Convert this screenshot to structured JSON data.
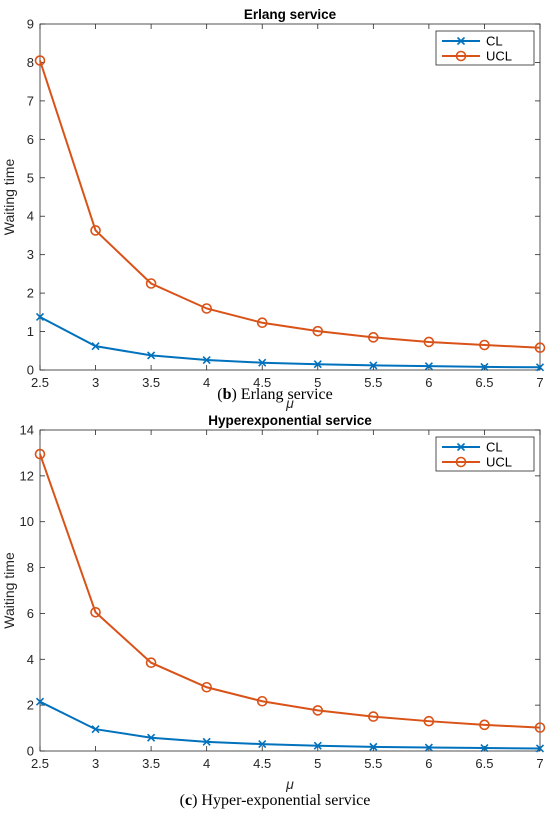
{
  "chart_data": [
    {
      "type": "line",
      "title": "Erlang service",
      "xlabel": "μ",
      "ylabel": "Waiting time",
      "xlim": [
        2.5,
        7
      ],
      "ylim": [
        0,
        9
      ],
      "xticks": [
        "2.5",
        "3",
        "3.5",
        "4",
        "4.5",
        "5",
        "5.5",
        "6",
        "6.5",
        "7"
      ],
      "yticks": [
        "0",
        "1",
        "2",
        "3",
        "4",
        "5",
        "6",
        "7",
        "8",
        "9"
      ],
      "x": [
        2.5,
        3,
        3.5,
        4,
        4.5,
        5,
        5.5,
        6,
        6.5,
        7
      ],
      "series": [
        {
          "name": "CL",
          "color": "#0072BD",
          "marker": "x",
          "values": [
            1.38,
            0.62,
            0.38,
            0.26,
            0.19,
            0.15,
            0.12,
            0.1,
            0.08,
            0.07
          ]
        },
        {
          "name": "UCL",
          "color": "#D95319",
          "marker": "o",
          "values": [
            8.05,
            3.63,
            2.25,
            1.6,
            1.23,
            1.01,
            0.85,
            0.73,
            0.65,
            0.58
          ]
        }
      ],
      "legend_position": "top-right",
      "caption_label": "b",
      "caption_text": "Erlang service"
    },
    {
      "type": "line",
      "title": "Hyperexponential service",
      "xlabel": "μ",
      "ylabel": "Waiting time",
      "xlim": [
        2.5,
        7
      ],
      "ylim": [
        0,
        14
      ],
      "xticks": [
        "2.5",
        "3",
        "3.5",
        "4",
        "4.5",
        "5",
        "5.5",
        "6",
        "6.5",
        "7"
      ],
      "yticks": [
        "0",
        "2",
        "4",
        "6",
        "8",
        "10",
        "12",
        "14"
      ],
      "x": [
        2.5,
        3,
        3.5,
        4,
        4.5,
        5,
        5.5,
        6,
        6.5,
        7
      ],
      "series": [
        {
          "name": "CL",
          "color": "#0072BD",
          "marker": "x",
          "values": [
            2.15,
            0.95,
            0.58,
            0.4,
            0.3,
            0.23,
            0.18,
            0.15,
            0.13,
            0.11
          ]
        },
        {
          "name": "UCL",
          "color": "#D95319",
          "marker": "o",
          "values": [
            12.95,
            6.05,
            3.85,
            2.78,
            2.17,
            1.77,
            1.5,
            1.3,
            1.14,
            1.02
          ]
        }
      ],
      "legend_position": "top-right",
      "caption_label": "c",
      "caption_text": "Hyper-exponential service"
    }
  ]
}
